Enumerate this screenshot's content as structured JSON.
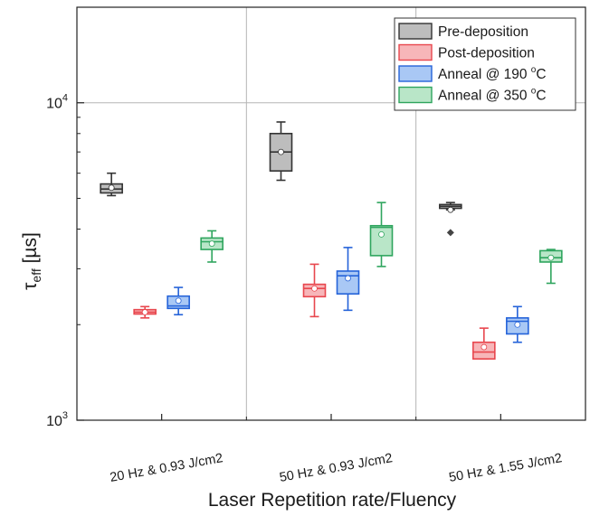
{
  "chart_data": {
    "type": "box",
    "xlabel": "Laser Repetition rate/Fluency",
    "ylabel_main": "τ",
    "ylabel_sub": "eff",
    "ylabel_unit": " [µs]",
    "yscale": "log",
    "ylim": [
      1000,
      20000
    ],
    "y_ticks": [
      {
        "value": 1000,
        "base": "10",
        "exp": "3"
      },
      {
        "value": 10000,
        "base": "10",
        "exp": "4"
      }
    ],
    "grid": true,
    "legend_position": "top-right",
    "categories": [
      "20 Hz & 0.93 J/cm2",
      "50 Hz & 0.93 J/cm2",
      "50 Hz & 1.55 J/cm2"
    ],
    "series": [
      {
        "name": "Pre-deposition",
        "edge": "#333333",
        "fill": "#bdbdbd",
        "boxes": [
          {
            "whislo": 5100,
            "q1": 5200,
            "med": 5350,
            "q3": 5550,
            "whishi": 6000,
            "mean": 5400,
            "fliers": []
          },
          {
            "whislo": 5700,
            "q1": 6100,
            "med": 7000,
            "q3": 8000,
            "whishi": 8700,
            "mean": 7000,
            "fliers": []
          },
          {
            "whislo": 4600,
            "q1": 4650,
            "med": 4720,
            "q3": 4780,
            "whishi": 4850,
            "mean": 4600,
            "fliers": [
              3900
            ]
          }
        ]
      },
      {
        "name": "Post-deposition",
        "edge": "#e8474e",
        "fill": "#f7b6b9",
        "boxes": [
          {
            "whislo": 2100,
            "q1": 2160,
            "med": 2190,
            "q3": 2230,
            "whishi": 2280,
            "mean": 2190,
            "fliers": []
          },
          {
            "whislo": 2120,
            "q1": 2450,
            "med": 2600,
            "q3": 2680,
            "whishi": 3100,
            "mean": 2600,
            "fliers": []
          },
          {
            "whislo": 1560,
            "q1": 1560,
            "med": 1640,
            "q3": 1760,
            "whishi": 1950,
            "mean": 1700,
            "fliers": []
          }
        ]
      },
      {
        "name": "Anneal @ 190 °C",
        "legend_base": "Anneal @ 190 ",
        "legend_sup": "o",
        "legend_suffix": "C",
        "edge": "#2563d9",
        "fill": "#a9c8f5",
        "boxes": [
          {
            "whislo": 2150,
            "q1": 2250,
            "med": 2290,
            "q3": 2460,
            "whishi": 2620,
            "mean": 2380,
            "fliers": []
          },
          {
            "whislo": 2220,
            "q1": 2500,
            "med": 2850,
            "q3": 2950,
            "whishi": 3500,
            "mean": 2800,
            "fliers": []
          },
          {
            "whislo": 1760,
            "q1": 1870,
            "med": 2050,
            "q3": 2100,
            "whishi": 2280,
            "mean": 2000,
            "fliers": []
          }
        ]
      },
      {
        "name": "Anneal @ 350 °C",
        "legend_base": "Anneal @ 350 ",
        "legend_sup": "o",
        "legend_suffix": "C",
        "edge": "#2fa55e",
        "fill": "#b9e6c8",
        "boxes": [
          {
            "whislo": 3150,
            "q1": 3450,
            "med": 3650,
            "q3": 3750,
            "whishi": 3950,
            "mean": 3600,
            "fliers": []
          },
          {
            "whislo": 3050,
            "q1": 3300,
            "med": 4050,
            "q3": 4100,
            "whishi": 4850,
            "mean": 3850,
            "fliers": []
          },
          {
            "whislo": 2700,
            "q1": 3150,
            "med": 3250,
            "q3": 3420,
            "whishi": 3450,
            "mean": 3250,
            "fliers": []
          }
        ]
      }
    ]
  }
}
